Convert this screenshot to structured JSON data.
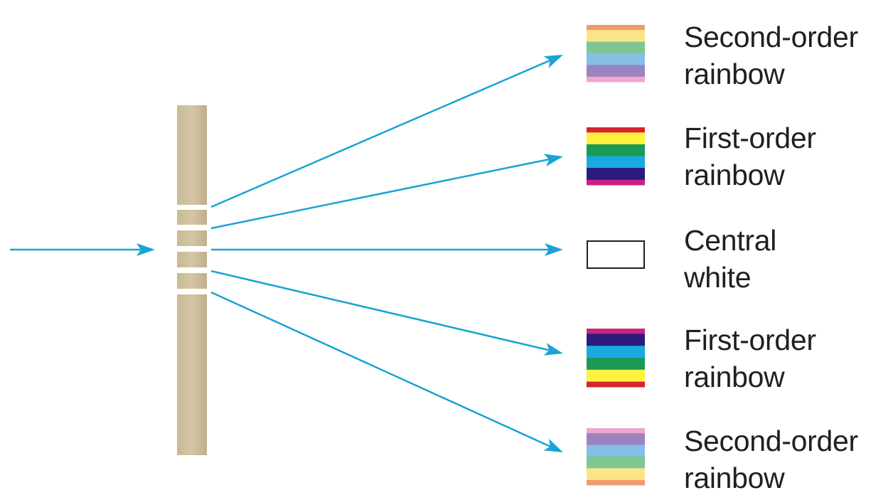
{
  "colors": {
    "ray": "#1aa3d4",
    "grating": "#cdbfa0",
    "grating_edge": "#b9a983",
    "slit_gap": "#ffffff",
    "text": "#1f1f1f",
    "white_box_border": "#1f1f1f"
  },
  "labels": [
    {
      "line1": "Second-order",
      "line2": "rainbow"
    },
    {
      "line1": "First-order",
      "line2": "rainbow"
    },
    {
      "line1": "Central",
      "line2": "white"
    },
    {
      "line1": "First-order",
      "line2": "rainbow"
    },
    {
      "line1": "Second-order",
      "line2": "rainbow"
    }
  ],
  "spectra": {
    "second_order_top": [
      "#f29a6c",
      "#fbe58a",
      "#7fc791",
      "#86bfe6",
      "#9b83c0",
      "#f0a7cf"
    ],
    "first_order_top": [
      "#d9232e",
      "#fff23e",
      "#1a9a55",
      "#1aa9e0",
      "#2b1b7d",
      "#c6247d"
    ],
    "central": [
      "#ffffff"
    ],
    "first_order_bottom": [
      "#c6247d",
      "#2b1b7d",
      "#1aa9e0",
      "#1a9a55",
      "#fff23e",
      "#d9232e"
    ],
    "second_order_bottom": [
      "#f0a7cf",
      "#9b83c0",
      "#86bfe6",
      "#7fc791",
      "#fbe58a",
      "#f29a6c"
    ]
  }
}
